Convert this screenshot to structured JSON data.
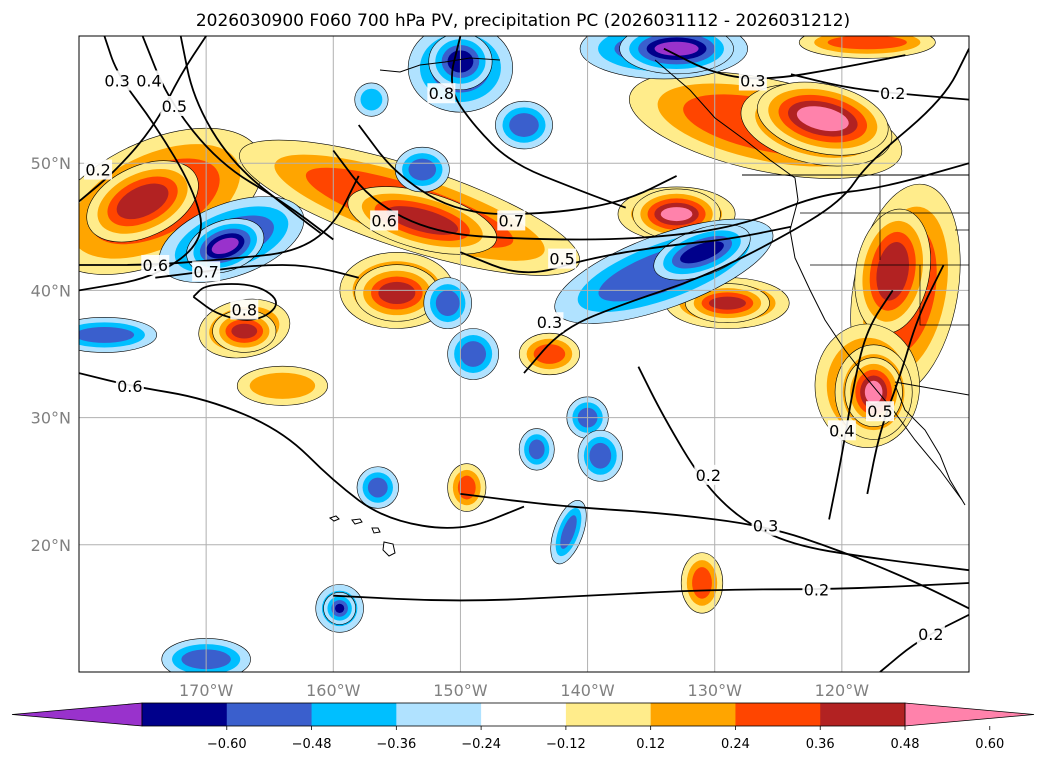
{
  "title": "2026030900 F060 700 hPa PV, precipitation PC (2026031112 - 2026031212)",
  "map": {
    "lon_range": [
      -180,
      -110
    ],
    "lat_range": [
      10,
      60
    ],
    "lon_ticks": [
      {
        "value": -170,
        "label": "170°W"
      },
      {
        "value": -160,
        "label": "160°W"
      },
      {
        "value": -150,
        "label": "150°W"
      },
      {
        "value": -140,
        "label": "140°W"
      },
      {
        "value": -130,
        "label": "130°W"
      },
      {
        "value": -120,
        "label": "120°W"
      }
    ],
    "lat_ticks": [
      {
        "value": 20,
        "label": "20°N"
      },
      {
        "value": 30,
        "label": "30°N"
      },
      {
        "value": 40,
        "label": "40°N"
      },
      {
        "value": 50,
        "label": "50°N"
      }
    ],
    "gridlines": true
  },
  "colorbar": {
    "orientation": "horizontal",
    "extend": "both",
    "bins": [
      {
        "color": "#9932cc"
      },
      {
        "color": "#00008b"
      },
      {
        "color": "#3a5fcd"
      },
      {
        "color": "#00bfff"
      },
      {
        "color": "#b0e2ff"
      },
      {
        "color": "#ffffff"
      },
      {
        "color": "#ffec8b"
      },
      {
        "color": "#ffa500"
      },
      {
        "color": "#ff4500"
      },
      {
        "color": "#b22222"
      },
      {
        "color": "#ff82ab"
      }
    ],
    "tick_labels": [
      "−0.60",
      "−0.48",
      "−0.36",
      "−0.24",
      "−0.12",
      "0.12",
      "0.24",
      "0.36",
      "0.48",
      "0.60"
    ]
  },
  "precip_blobs": [
    {
      "lon": -174,
      "lat": 47,
      "rx": 7,
      "ry": 3.5,
      "rot": -25,
      "level": 3
    },
    {
      "lon": -175,
      "lat": 47,
      "rx": 3,
      "ry": 1.6,
      "rot": -25,
      "level": 4
    },
    {
      "lon": -154,
      "lat": 46.5,
      "rx": 11,
      "ry": 2.3,
      "rot": 18,
      "level": 3
    },
    {
      "lon": -153,
      "lat": 45.5,
      "rx": 4,
      "ry": 1.2,
      "rot": 15,
      "level": 4
    },
    {
      "lon": -155,
      "lat": 40,
      "rx": 3.3,
      "ry": 2.1,
      "rot": 0,
      "level": 3
    },
    {
      "lon": -155,
      "lat": 39.8,
      "rx": 2,
      "ry": 1.2,
      "rot": 0,
      "level": 4
    },
    {
      "lon": -167,
      "lat": 37,
      "rx": 2.6,
      "ry": 1.5,
      "rot": -10,
      "level": 3
    },
    {
      "lon": -167,
      "lat": 36.8,
      "rx": 1.4,
      "ry": 0.8,
      "rot": 0,
      "level": 4
    },
    {
      "lon": -126,
      "lat": 53,
      "rx": 8.5,
      "ry": 2.6,
      "rot": 12,
      "level": 3
    },
    {
      "lon": -122,
      "lat": 53,
      "rx": 4,
      "ry": 1.8,
      "rot": 12,
      "level": 4
    },
    {
      "lon": -121.5,
      "lat": 53.5,
      "rx": 3,
      "ry": 1.3,
      "rot": 12,
      "level": 5
    },
    {
      "lon": -133,
      "lat": 46,
      "rx": 3.4,
      "ry": 1.4,
      "rot": 0,
      "level": 3
    },
    {
      "lon": -133,
      "lat": 46,
      "rx": 1.8,
      "ry": 0.8,
      "rot": 0,
      "level": 5
    },
    {
      "lon": -129,
      "lat": 39,
      "rx": 3.6,
      "ry": 1.3,
      "rot": 0,
      "level": 3
    },
    {
      "lon": -129,
      "lat": 39,
      "rx": 2,
      "ry": 0.7,
      "rot": 0,
      "level": 4
    },
    {
      "lon": -115,
      "lat": 40,
      "rx": 3,
      "ry": 6.5,
      "rot": 10,
      "level": 3
    },
    {
      "lon": -116,
      "lat": 41.5,
      "rx": 1.7,
      "ry": 3.2,
      "rot": 10,
      "level": 4
    },
    {
      "lon": -118,
      "lat": 32.5,
      "rx": 3,
      "ry": 3.6,
      "rot": 0,
      "level": 3
    },
    {
      "lon": -117.5,
      "lat": 32,
      "rx": 1.8,
      "ry": 2.3,
      "rot": 0,
      "level": 4
    },
    {
      "lon": -117.5,
      "lat": 32,
      "rx": 1,
      "ry": 1.3,
      "rot": 0,
      "level": 5
    },
    {
      "lon": -143,
      "lat": 35,
      "rx": 1.6,
      "ry": 1,
      "rot": 0,
      "level": 3
    },
    {
      "lon": -149.5,
      "lat": 24.5,
      "rx": 0.9,
      "ry": 1.2,
      "rot": 0,
      "level": 3
    },
    {
      "lon": -131,
      "lat": 17,
      "rx": 1,
      "ry": 1.6,
      "rot": 0,
      "level": 3
    },
    {
      "lon": -164,
      "lat": 32.5,
      "rx": 3,
      "ry": 1.2,
      "rot": 0,
      "level": 2
    },
    {
      "lon": -168,
      "lat": 44,
      "rx": 4.5,
      "ry": 2,
      "rot": -20,
      "level": -3
    },
    {
      "lon": -168.5,
      "lat": 43.5,
      "rx": 1.6,
      "ry": 0.8,
      "rot": -20,
      "level": -5
    },
    {
      "lon": -150,
      "lat": 57.5,
      "rx": 3,
      "ry": 2.5,
      "rot": 0,
      "level": -3
    },
    {
      "lon": -150,
      "lat": 58,
      "rx": 1.4,
      "ry": 1.2,
      "rot": 0,
      "level": -4
    },
    {
      "lon": -134,
      "lat": 59,
      "rx": 5,
      "ry": 1.6,
      "rot": 0,
      "level": -3
    },
    {
      "lon": -133,
      "lat": 59,
      "rx": 2.5,
      "ry": 0.8,
      "rot": 0,
      "level": -5
    },
    {
      "lon": -134,
      "lat": 41.5,
      "rx": 7,
      "ry": 2,
      "rot": -20,
      "level": -3
    },
    {
      "lon": -131,
      "lat": 43,
      "rx": 2.5,
      "ry": 0.9,
      "rot": -20,
      "level": -4
    },
    {
      "lon": -145,
      "lat": 53,
      "rx": 1.5,
      "ry": 1.2,
      "rot": 0,
      "level": -3
    },
    {
      "lon": -153,
      "lat": 49.5,
      "rx": 1.4,
      "ry": 1.1,
      "rot": 0,
      "level": -3
    },
    {
      "lon": -157,
      "lat": 55,
      "rx": 1,
      "ry": 1,
      "rot": 0,
      "level": -2
    },
    {
      "lon": -178,
      "lat": 36.5,
      "rx": 3,
      "ry": 0.8,
      "rot": 0,
      "level": -3
    },
    {
      "lon": -151,
      "lat": 39,
      "rx": 1.2,
      "ry": 1.3,
      "rot": 0,
      "level": -3
    },
    {
      "lon": -149,
      "lat": 35,
      "rx": 1.3,
      "ry": 1.3,
      "rot": 0,
      "level": -3
    },
    {
      "lon": -140,
      "lat": 30,
      "rx": 1,
      "ry": 1,
      "rot": 0,
      "level": -3
    },
    {
      "lon": -139,
      "lat": 27,
      "rx": 1.1,
      "ry": 1.3,
      "rot": 0,
      "level": -3
    },
    {
      "lon": -144,
      "lat": 27.5,
      "rx": 0.8,
      "ry": 1,
      "rot": 0,
      "level": -3
    },
    {
      "lon": -156.5,
      "lat": 24.5,
      "rx": 1,
      "ry": 1,
      "rot": 0,
      "level": -3
    },
    {
      "lon": -159.5,
      "lat": 15,
      "rx": 1.2,
      "ry": 1.2,
      "rot": 0,
      "level": -3
    },
    {
      "lon": -159.5,
      "lat": 15,
      "rx": 0.5,
      "ry": 0.5,
      "rot": 0,
      "level": -4
    },
    {
      "lon": -170,
      "lat": 11,
      "rx": 2.5,
      "ry": 1,
      "rot": 0,
      "level": -3
    },
    {
      "lon": -141.5,
      "lat": 21,
      "rx": 0.6,
      "ry": 1.8,
      "rot": 20,
      "level": -3
    },
    {
      "lon": -118,
      "lat": 59.5,
      "rx": 4,
      "ry": 0.7,
      "rot": 0,
      "level": 3
    }
  ],
  "pv_contours": [
    {
      "label": "0.2",
      "label_lon": -178.5,
      "label_lat": 49.5,
      "points": [
        [
          -180,
          47
        ],
        [
          -177,
          49.5
        ],
        [
          -174,
          53
        ],
        [
          -172,
          57
        ],
        [
          -170,
          60
        ]
      ]
    },
    {
      "label": "0.3",
      "label_lon": -177,
      "label_lat": 56.5,
      "points": [
        [
          -178,
          60
        ],
        [
          -177,
          57
        ],
        [
          -174,
          53
        ],
        [
          -171,
          48
        ],
        [
          -170,
          44
        ],
        [
          -174,
          41
        ],
        [
          -180,
          40
        ]
      ]
    },
    {
      "label": "0.4",
      "label_lon": -174.5,
      "label_lat": 56.5,
      "points": [
        [
          -175,
          60
        ],
        [
          -173,
          55
        ],
        [
          -169,
          50
        ],
        [
          -164,
          47
        ],
        [
          -160,
          44
        ]
      ]
    },
    {
      "label": "0.5",
      "label_lon": -172.5,
      "label_lat": 54.5,
      "points": [
        [
          -172,
          60
        ],
        [
          -171,
          55
        ],
        [
          -168,
          50
        ],
        [
          -163,
          46
        ],
        [
          -161,
          44.5
        ]
      ]
    },
    {
      "label": "0.6",
      "label_lon": -156,
      "label_lat": 45.5,
      "points": [
        [
          -160,
          51
        ],
        [
          -157,
          47
        ],
        [
          -152,
          44.5
        ],
        [
          -145,
          44
        ],
        [
          -136,
          44
        ],
        [
          -128,
          45
        ],
        [
          -122,
          47.5
        ],
        [
          -117,
          48
        ],
        [
          -110,
          50
        ]
      ]
    },
    {
      "label": "0.7",
      "label_lon": -146,
      "label_lat": 45.5,
      "points": [
        [
          -158,
          53
        ],
        [
          -155,
          49
        ],
        [
          -150,
          46
        ],
        [
          -143,
          46
        ],
        [
          -137,
          47
        ],
        [
          -133,
          49
        ]
      ]
    },
    {
      "label": "0.6",
      "label_lon": -174,
      "label_lat": 42,
      "points": [
        [
          -180,
          42
        ],
        [
          -174,
          42
        ],
        [
          -168,
          42.5
        ],
        [
          -163,
          43
        ],
        [
          -160,
          45
        ],
        [
          -158,
          49
        ]
      ]
    },
    {
      "label": "0.7",
      "label_lon": -170,
      "label_lat": 41.5,
      "points": [
        [
          -174,
          41
        ],
        [
          -170,
          41.5
        ],
        [
          -166,
          42
        ],
        [
          -162,
          42
        ],
        [
          -158,
          41
        ]
      ]
    },
    {
      "label": "0.8",
      "label_lon": -167,
      "label_lat": 38.5,
      "points": [
        [
          -171,
          39.5
        ],
        [
          -169,
          38
        ],
        [
          -166,
          37.5
        ],
        [
          -164,
          39
        ],
        [
          -166,
          40.5
        ],
        [
          -170,
          40.5
        ],
        [
          -171,
          39.5
        ]
      ]
    },
    {
      "label": "0.5",
      "label_lon": -142,
      "label_lat": 42.5,
      "points": [
        [
          -150,
          43
        ],
        [
          -145,
          41
        ],
        [
          -140,
          42.5
        ],
        [
          -134,
          43.5
        ],
        [
          -129,
          44
        ],
        [
          -124,
          45
        ]
      ]
    },
    {
      "label": "0.3",
      "label_lon": -143,
      "label_lat": 37.5,
      "points": [
        [
          -145,
          33.5
        ],
        [
          -142,
          37
        ],
        [
          -137,
          39
        ],
        [
          -131,
          41
        ],
        [
          -125,
          44
        ],
        [
          -120,
          47
        ],
        [
          -118,
          50
        ],
        [
          -112,
          55
        ],
        [
          -110,
          59
        ]
      ]
    },
    {
      "label": "0.8",
      "label_lon": -151.5,
      "label_lat": 55.5,
      "points": [
        [
          -150,
          60
        ],
        [
          -151,
          56
        ],
        [
          -149,
          53
        ],
        [
          -146,
          50
        ],
        [
          -141,
          48
        ],
        [
          -137,
          46.5
        ]
      ]
    },
    {
      "label": "0.6",
      "label_lon": -176,
      "label_lat": 32.5,
      "points": [
        [
          -180,
          33.5
        ],
        [
          -176,
          32.5
        ],
        [
          -170,
          31.5
        ],
        [
          -164,
          29
        ],
        [
          -160,
          25
        ],
        [
          -156,
          22
        ],
        [
          -150,
          21
        ],
        [
          -145,
          23
        ]
      ]
    },
    {
      "label": "0.4",
      "label_lon": -120,
      "label_lat": 29,
      "points": [
        [
          -121,
          22
        ],
        [
          -120,
          27
        ],
        [
          -119,
          33
        ],
        [
          -118,
          37
        ],
        [
          -116,
          40
        ]
      ]
    },
    {
      "label": "0.5",
      "label_lon": -117,
      "label_lat": 30.5,
      "points": [
        [
          -118,
          24
        ],
        [
          -117,
          29
        ],
        [
          -115.5,
          33
        ],
        [
          -114,
          38
        ],
        [
          -112,
          42
        ]
      ]
    },
    {
      "label": "0.2",
      "label_lon": -130.5,
      "label_lat": 25.5,
      "points": [
        [
          -136,
          34
        ],
        [
          -134,
          30
        ],
        [
          -131,
          25
        ],
        [
          -128,
          22
        ],
        [
          -124,
          20
        ],
        [
          -118,
          19
        ],
        [
          -110,
          18
        ]
      ]
    },
    {
      "label": "0.3",
      "label_lon": -126,
      "label_lat": 21.5,
      "points": [
        [
          -150,
          24
        ],
        [
          -142,
          23
        ],
        [
          -134,
          22.5
        ],
        [
          -126,
          21.5
        ],
        [
          -120,
          19.5
        ],
        [
          -114,
          17
        ],
        [
          -110,
          15
        ]
      ]
    },
    {
      "label": "0.2",
      "label_lon": -122,
      "label_lat": 16.5,
      "points": [
        [
          -160,
          16
        ],
        [
          -150,
          15.5
        ],
        [
          -140,
          16
        ],
        [
          -130,
          16.5
        ],
        [
          -120,
          16.5
        ],
        [
          -110,
          17
        ]
      ]
    },
    {
      "label": "0.2",
      "label_lon": -113,
      "label_lat": 13,
      "points": [
        [
          -117,
          10
        ],
        [
          -114,
          12.5
        ],
        [
          -110,
          14.5
        ]
      ]
    },
    {
      "label": "0.2",
      "label_lon": -116,
      "label_lat": 55.5,
      "points": [
        [
          -124,
          57
        ],
        [
          -120,
          56
        ],
        [
          -116,
          55.5
        ],
        [
          -110,
          55
        ]
      ]
    },
    {
      "label": "0.3",
      "label_lon": -127,
      "label_lat": 56.5,
      "points": [
        [
          -134,
          59
        ],
        [
          -130,
          57
        ],
        [
          -126,
          56.5
        ],
        [
          -120,
          57.5
        ],
        [
          -115,
          58.5
        ]
      ]
    }
  ]
}
